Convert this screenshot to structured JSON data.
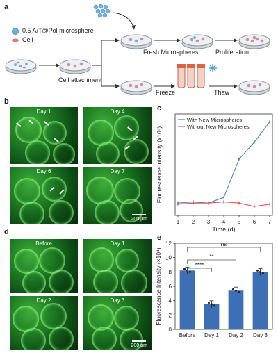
{
  "panel_labels": [
    "a",
    "b",
    "c",
    "d",
    "e"
  ],
  "schematic": {
    "legend_micro": "0.5 A/T@Pol microsphere",
    "legend_cell": "Cell",
    "cell_attachment": "Cell attachment",
    "fresh": "Fresh Microspheres",
    "proliferation": "Proliferation",
    "freeze": "Freeze",
    "thaw": "Thaw"
  },
  "panel_b": {
    "labels": [
      "Day 1",
      "Day 4",
      "Day 6",
      "Day 7"
    ],
    "scale": "200 μm"
  },
  "panel_d": {
    "labels": [
      "Before",
      "Day 1",
      "Day 2",
      "Day 3"
    ],
    "scale": "200 μm"
  },
  "colors": {
    "blue": "#4a86c5",
    "red": "#e05555",
    "bar": "#3d6fb5",
    "green": "#1f7d24"
  },
  "chart_data": [
    {
      "type": "line",
      "xlabel": "Time (d)",
      "ylabel": "Fluorescence Intensity (x10⁴)",
      "x": [
        1,
        2,
        3,
        4,
        5,
        6,
        7
      ],
      "series": [
        {
          "name": "With New Microspheres",
          "values": [
            7.6,
            7.7,
            7.6,
            8.1,
            11.5,
            13.0,
            14.8
          ]
        },
        {
          "name": "Without New Microspheres",
          "values": [
            7.5,
            7.6,
            7.6,
            7.7,
            7.6,
            7.3,
            7.5
          ]
        }
      ],
      "xticks": [
        "1",
        "2",
        "3",
        "4",
        "5",
        "6",
        "7"
      ]
    },
    {
      "type": "bar",
      "ylabel": "Fluorescence Intensity (×10⁴)",
      "categories": [
        "Before",
        "Day 1",
        "Day 2",
        "Day 3"
      ],
      "values": [
        8.2,
        3.5,
        5.4,
        8.0
      ],
      "ylim": [
        0,
        12
      ],
      "yticks": [
        "0",
        "2",
        "4",
        "6",
        "8",
        "10",
        "12"
      ],
      "significance": [
        "****",
        "**",
        "ns"
      ]
    }
  ]
}
